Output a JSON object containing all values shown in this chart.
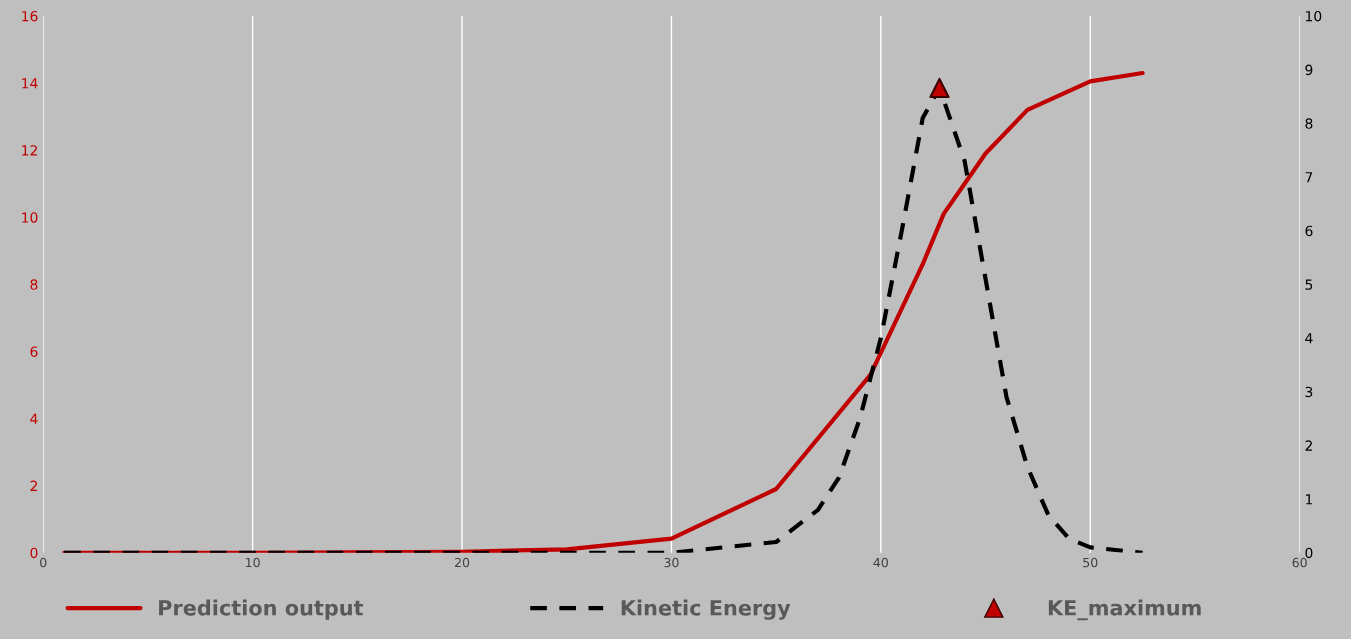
{
  "chart_data": {
    "type": "line",
    "xlim": [
      0,
      60
    ],
    "xticks": [
      0,
      10,
      20,
      30,
      40,
      50,
      60
    ],
    "ylim": [
      0,
      16
    ],
    "yticks": [
      0,
      2,
      4,
      6,
      8,
      10,
      12,
      14,
      16
    ],
    "y2lim": [
      0,
      10
    ],
    "y2ticks": [
      0,
      1,
      2,
      3,
      4,
      5,
      6,
      7,
      8,
      9,
      10
    ],
    "grid": "x",
    "legend": "bottom",
    "series": [
      {
        "name": "Prediction output",
        "color": "#c00000",
        "line_style": "solid",
        "x": [
          1,
          10,
          20,
          25,
          30,
          35,
          39.5,
          42,
          43,
          44,
          45,
          47,
          50,
          52.5
        ],
        "values": [
          0,
          0,
          0.03,
          0.1,
          0.42,
          1.9,
          5.3,
          8.6,
          10.1,
          11,
          11.9,
          13.2,
          14.05,
          14.3
        ]
      },
      {
        "name": "Kinetic Energy",
        "color": "#000000",
        "line_style": "dashed",
        "axis": "y2",
        "x": [
          1,
          20,
          30,
          35,
          37,
          38,
          39,
          40,
          41,
          42,
          42.8,
          44,
          45,
          46,
          47,
          48,
          49,
          50,
          52.5
        ],
        "values": [
          0,
          0,
          0,
          0.2,
          0.8,
          1.4,
          2.5,
          4.0,
          6.0,
          8.1,
          8.66,
          7.3,
          5.1,
          2.9,
          1.6,
          0.7,
          0.26,
          0.1,
          0
        ]
      },
      {
        "name": "KE_maximum",
        "type": "scatter",
        "marker": "triangle",
        "color": "#c00000",
        "axis": "y2",
        "x": [
          42.8
        ],
        "values": [
          8.66
        ]
      }
    ]
  }
}
